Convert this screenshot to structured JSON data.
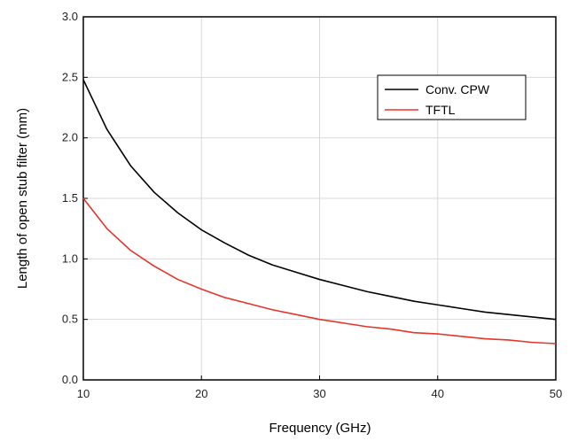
{
  "chart_data": {
    "type": "line",
    "title": "",
    "xlabel": "Frequency (GHz)",
    "ylabel": "Length of open stub filter (mm)",
    "xlim": [
      10,
      50
    ],
    "ylim": [
      0.0,
      3.0
    ],
    "x_ticks": [
      10,
      20,
      30,
      40,
      50
    ],
    "y_ticks": [
      "0.0",
      "0.5",
      "1.0",
      "1.5",
      "2.0",
      "2.5",
      "3.0"
    ],
    "grid": true,
    "legend_position": "top-right",
    "series": [
      {
        "name": "Conv. CPW",
        "color": "#000000",
        "x": [
          10,
          12,
          14,
          16,
          18,
          20,
          22,
          24,
          26,
          28,
          30,
          32,
          34,
          36,
          38,
          40,
          42,
          44,
          46,
          48,
          50
        ],
        "values": [
          2.48,
          2.07,
          1.77,
          1.55,
          1.38,
          1.24,
          1.13,
          1.03,
          0.95,
          0.89,
          0.83,
          0.78,
          0.73,
          0.69,
          0.65,
          0.62,
          0.59,
          0.56,
          0.54,
          0.52,
          0.5
        ]
      },
      {
        "name": "TFTL",
        "color": "#e8332a",
        "x": [
          10,
          12,
          14,
          16,
          18,
          20,
          22,
          24,
          26,
          28,
          30,
          32,
          34,
          36,
          38,
          40,
          42,
          44,
          46,
          48,
          50
        ],
        "values": [
          1.5,
          1.25,
          1.07,
          0.94,
          0.83,
          0.75,
          0.68,
          0.63,
          0.58,
          0.54,
          0.5,
          0.47,
          0.44,
          0.42,
          0.39,
          0.38,
          0.36,
          0.34,
          0.33,
          0.31,
          0.3
        ]
      }
    ]
  }
}
